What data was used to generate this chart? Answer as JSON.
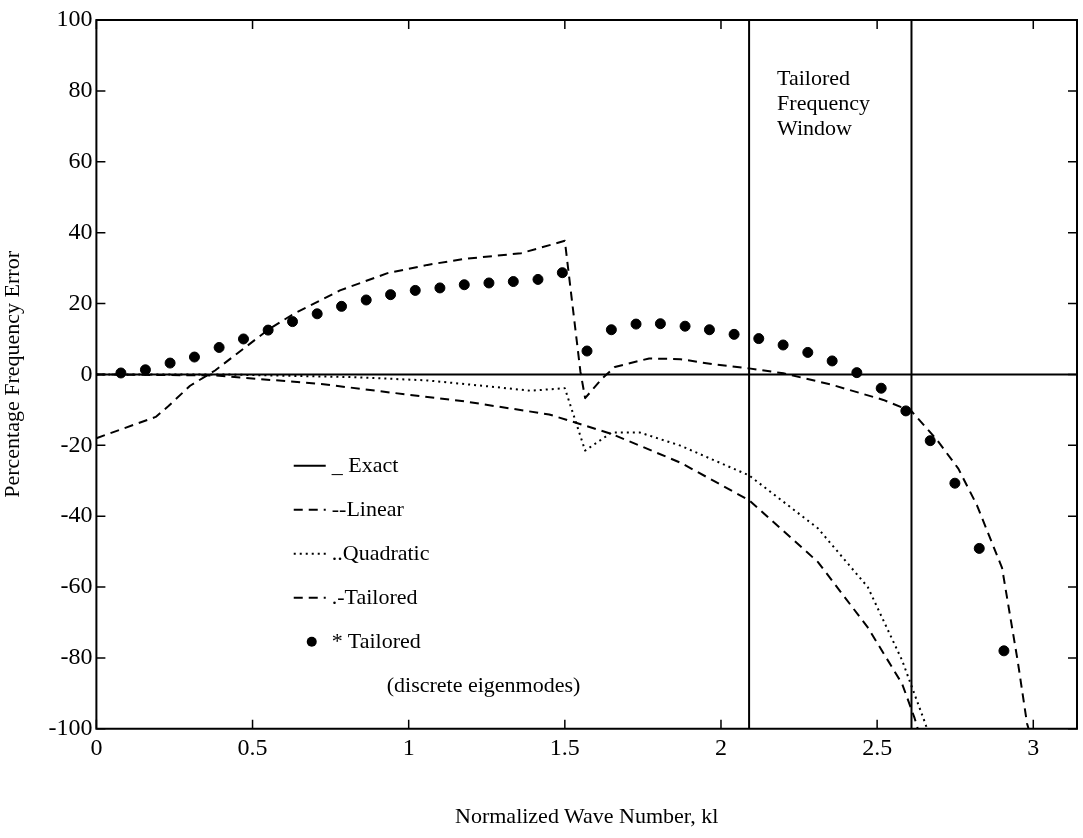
{
  "chart_data": {
    "type": "line",
    "xlabel": "Normalized Wave Number, kl",
    "ylabel": "Percentage Frequency Error",
    "xlim": [
      0,
      3.14
    ],
    "xticks": [
      0,
      0.5,
      1,
      1.5,
      2,
      2.5,
      3
    ],
    "ylim": [
      -100,
      100
    ],
    "yticks": [
      -100,
      -80,
      -60,
      -40,
      -20,
      0,
      20,
      40,
      60,
      80,
      100
    ],
    "grid": false,
    "legend": "bottom left",
    "marker": "none",
    "series": [
      {
        "name": "_ Exact",
        "color": "#000000",
        "line_style": "solid",
        "x": [
          0,
          3.14
        ],
        "values": [
          0,
          0
        ]
      },
      {
        "name": "--Linear",
        "color": "#000000",
        "line_style": "dashed",
        "x": [
          0,
          0.38,
          0.72,
          0.94,
          1.17,
          1.45,
          1.65,
          1.87,
          2.09,
          2.31,
          2.47,
          2.58,
          2.62,
          2.63
        ],
        "values": [
          0,
          -0.3,
          -2.7,
          -5.1,
          -7.5,
          -11.3,
          -16.8,
          -24.9,
          -35.5,
          -52.9,
          -71.4,
          -87.3,
          -97,
          -100
        ]
      },
      {
        "name": "..Quadratic",
        "color": "#000000",
        "line_style": "dotted",
        "x": [
          0,
          0.4,
          0.83,
          1.06,
          1.28,
          1.39,
          1.5,
          1.565,
          1.65,
          1.74,
          1.87,
          2.09,
          2.31,
          2.47,
          2.58,
          2.65,
          2.66
        ],
        "values": [
          0,
          0,
          -0.8,
          -1.7,
          -3.6,
          -4.6,
          -3.9,
          -21.5,
          -16.4,
          -16.4,
          -20.1,
          -28.5,
          -43.4,
          -60,
          -80.7,
          -97.5,
          -100
        ]
      },
      {
        "name": ".-Tailored",
        "color": "#000000",
        "line_style": "dashed",
        "x": [
          0,
          0.19,
          0.23,
          0.3,
          0.38,
          0.55,
          0.63,
          0.78,
          0.93,
          1.06,
          1.18,
          1.36,
          1.5,
          1.55,
          1.565,
          1.62,
          1.66,
          1.77,
          1.87,
          1.98,
          2.09,
          2.2,
          2.35,
          2.52,
          2.61,
          2.69,
          2.76,
          2.82,
          2.9,
          2.95,
          2.98,
          2.985
        ],
        "values": [
          -18,
          -12,
          -9,
          -3.2,
          1.1,
          12.6,
          17,
          23.7,
          28.5,
          30.9,
          32.6,
          34.2,
          37.7,
          0.7,
          -6.7,
          -1.1,
          2.1,
          4.5,
          4.3,
          2.8,
          1.7,
          0.3,
          -2.8,
          -7.2,
          -10.4,
          -18.3,
          -26.6,
          -37,
          -54.6,
          -80.8,
          -98.5,
          -100
        ]
      },
      {
        "name": "* Tailored",
        "type": "scatter",
        "marker": "circle",
        "color": "#000000",
        "x": [
          0.0785,
          0.157,
          0.236,
          0.314,
          0.393,
          0.471,
          0.55,
          0.628,
          0.707,
          0.785,
          0.864,
          0.942,
          1.021,
          1.1,
          1.178,
          1.257,
          1.335,
          1.414,
          1.492,
          1.571,
          1.649,
          1.728,
          1.806,
          1.885,
          1.963,
          2.042,
          2.121,
          2.199,
          2.278,
          2.356,
          2.435,
          2.513,
          2.592,
          2.67,
          2.749,
          2.827,
          2.906
        ],
        "values": [
          0.4,
          1.3,
          3.2,
          4.9,
          7.6,
          10,
          12.5,
          14.9,
          17.1,
          19.2,
          21,
          22.5,
          23.7,
          24.4,
          25.3,
          25.8,
          26.2,
          26.8,
          28.7,
          6.6,
          12.6,
          14.2,
          14.3,
          13.6,
          12.6,
          11.3,
          10.1,
          8.3,
          6.2,
          3.8,
          0.5,
          -3.9,
          -10.3,
          -18.7,
          -30.7,
          -49.1,
          -78
        ]
      }
    ],
    "ref_lines": [
      {
        "axis": "x",
        "value": 2.09,
        "color": "#000000",
        "line_style": "solid"
      },
      {
        "axis": "x",
        "value": 2.61,
        "color": "#000000",
        "line_style": "solid"
      }
    ],
    "annotations": [
      "Tailored\nFrequency\nWindow",
      "(discrete eigenmodes)"
    ]
  }
}
